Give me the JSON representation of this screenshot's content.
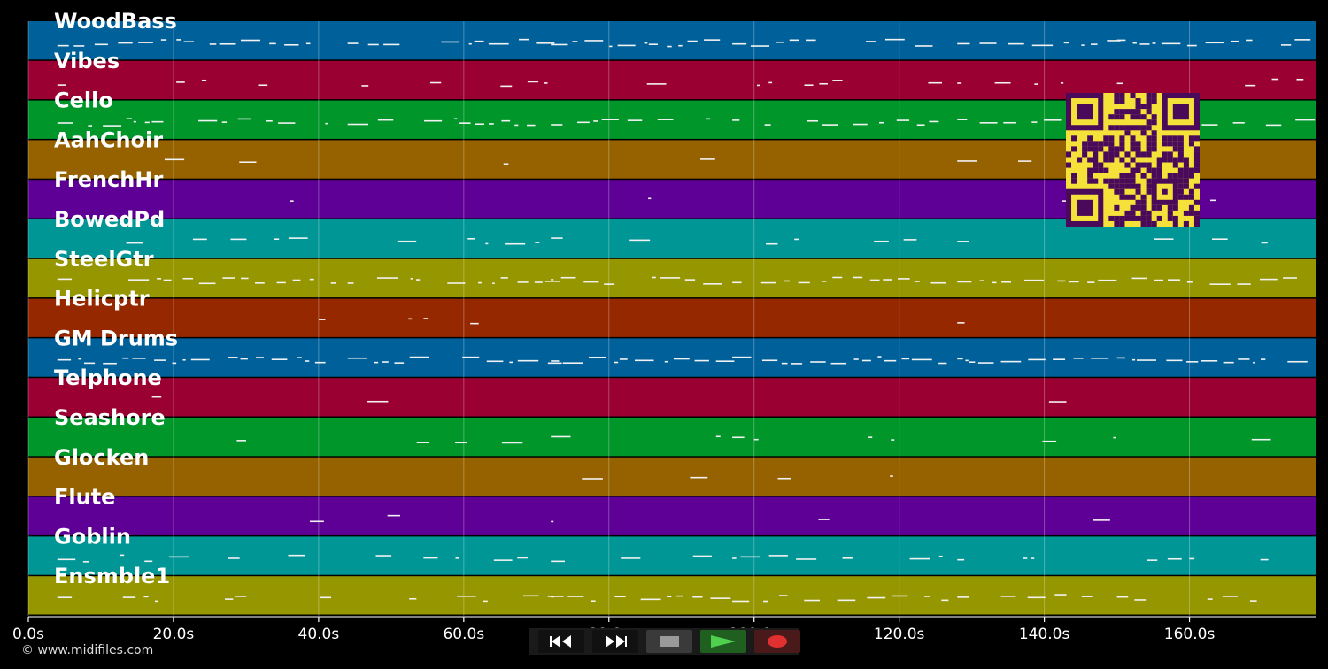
{
  "tracks": [
    {
      "name": "WoodBass",
      "color": "#00619a"
    },
    {
      "name": "Vibes",
      "color": "#9a0032"
    },
    {
      "name": "Cello",
      "color": "#00962a"
    },
    {
      "name": "AahChoir",
      "color": "#966200"
    },
    {
      "name": "FrenchHr",
      "color": "#5e0096"
    },
    {
      "name": "BowedPd",
      "color": "#009696"
    },
    {
      "name": "SteelGtr",
      "color": "#969600"
    },
    {
      "name": "Helicptr",
      "color": "#962800"
    },
    {
      "name": "GM Drums",
      "color": "#00619a"
    },
    {
      "name": "Telphone",
      "color": "#9a0032"
    },
    {
      "name": "Seashore",
      "color": "#00962a"
    },
    {
      "name": "Glocken",
      "color": "#966200"
    },
    {
      "name": "Flute",
      "color": "#5e0096"
    },
    {
      "name": "Goblin",
      "color": "#009696"
    },
    {
      "name": "Ensmble1",
      "color": "#969600"
    }
  ],
  "timeline": {
    "start_seconds": 0,
    "end_seconds": 177.5,
    "ticks": [
      {
        "seconds": 0,
        "label": "0.0s"
      },
      {
        "seconds": 20,
        "label": "20.0s"
      },
      {
        "seconds": 40,
        "label": "40.0s"
      },
      {
        "seconds": 60,
        "label": "60.0s"
      },
      {
        "seconds": 80,
        "label": "80.0s"
      },
      {
        "seconds": 100,
        "label": "100.0s"
      },
      {
        "seconds": 120,
        "label": "120.0s"
      },
      {
        "seconds": 140,
        "label": "140.0s"
      },
      {
        "seconds": 160,
        "label": "160.0s"
      }
    ]
  },
  "transport": {
    "buttons": [
      {
        "name": "rewind",
        "icon": "rewind-icon",
        "bg": "#111"
      },
      {
        "name": "fast-forward",
        "icon": "fast-forward-icon",
        "bg": "#111"
      },
      {
        "name": "stop",
        "icon": "stop-icon",
        "bg": "#3a3a3a"
      },
      {
        "name": "play",
        "icon": "play-icon",
        "bg": "#1f5f1f"
      },
      {
        "name": "record",
        "icon": "record-icon",
        "bg": "#4a1a1a"
      }
    ]
  },
  "footer": {
    "copyright": "© www.midifiles.com"
  },
  "qr": {
    "icon": "qr-code-icon",
    "fg": "#4a0a5a",
    "bg": "#f4e23a"
  }
}
